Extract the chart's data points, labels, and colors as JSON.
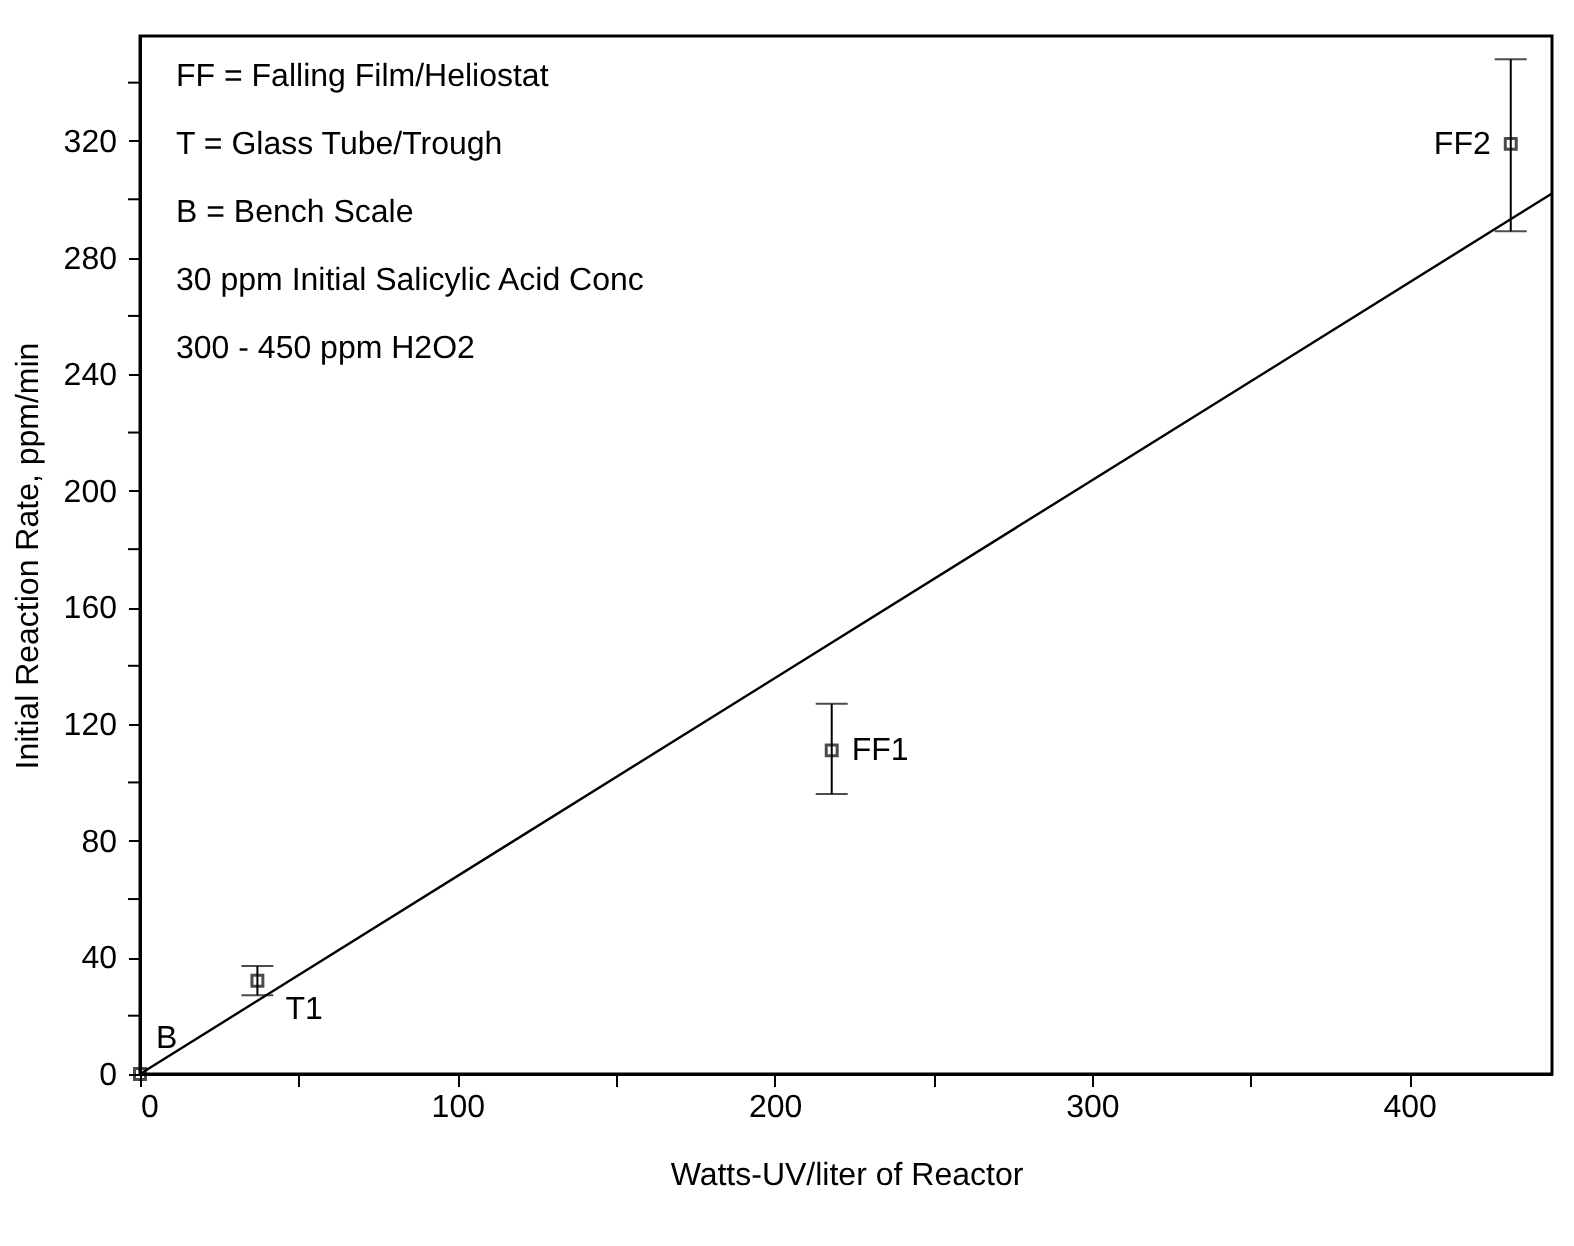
{
  "chart_data": {
    "type": "scatter",
    "xlabel": "Watts-UV/liter of Reactor",
    "ylabel": "Initial Reaction Rate, ppm/min",
    "xlim": [
      0,
      445
    ],
    "ylim": [
      0,
      356
    ],
    "xticks": [
      0,
      {
        "value": 50,
        "label": null
      },
      100,
      {
        "value": 150,
        "label": null
      },
      200,
      {
        "value": 250,
        "label": null
      },
      300,
      {
        "value": 350,
        "label": null
      },
      400
    ],
    "yticks": [
      0,
      {
        "value": 20,
        "label": null
      },
      40,
      {
        "value": 60,
        "label": null
      },
      80,
      {
        "value": 100,
        "label": null
      },
      120,
      {
        "value": 140,
        "label": null
      },
      160,
      {
        "value": 180,
        "label": null
      },
      200,
      {
        "value": 220,
        "label": null
      },
      240,
      {
        "value": 260,
        "label": null
      },
      280,
      {
        "value": 300,
        "label": null
      },
      320,
      {
        "value": 340,
        "label": null
      }
    ],
    "grid": false,
    "series": [
      {
        "marker": "square",
        "color": "#000000",
        "x": [
          0,
          37,
          218,
          432
        ],
        "values": [
          0,
          32,
          111,
          319
        ],
        "errors": [
          null,
          [
            27,
            37
          ],
          [
            96,
            127
          ],
          [
            289,
            348
          ]
        ]
      },
      {
        "type": "line",
        "color": "#000000",
        "x": [
          0,
          445
        ],
        "values": [
          0,
          302
        ],
        "line_style": "solid"
      }
    ],
    "annotations": [
      "FF = Falling Film/Heliostat",
      "T = Glass Tube/Trough",
      "B = Bench Scale",
      "30 ppm Initial Salicylic Acid Conc",
      "300 - 450 ppm H2O2",
      {
        "text": "B",
        "x": 0,
        "y": 0
      },
      {
        "text": "T1",
        "x": 37,
        "y": 32
      },
      {
        "text": "FF1",
        "x": 218,
        "y": 111
      },
      {
        "text": "FF2",
        "x": 432,
        "y": 319
      }
    ]
  }
}
